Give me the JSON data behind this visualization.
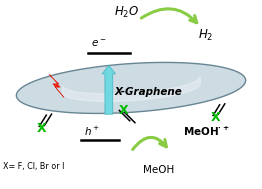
{
  "bg_color": "#ffffff",
  "sheet_color": "#c8d8e0",
  "sheet_edge_color": "#5a7a8a",
  "lightning_color": "#ee2211",
  "arrow_color": "#70d8e0",
  "arrow_edge_color": "#40b0c0",
  "green_arrow_color": "#88cc44",
  "green_x_color": "#00bb00",
  "text_color": "#000000",
  "graphene_label": "X-Graphene",
  "eminus_label": "e⁻",
  "hplus_label": "h⁺",
  "meoh_label": "MeOH",
  "xdef_label": "X= F, Cl, Br or I"
}
